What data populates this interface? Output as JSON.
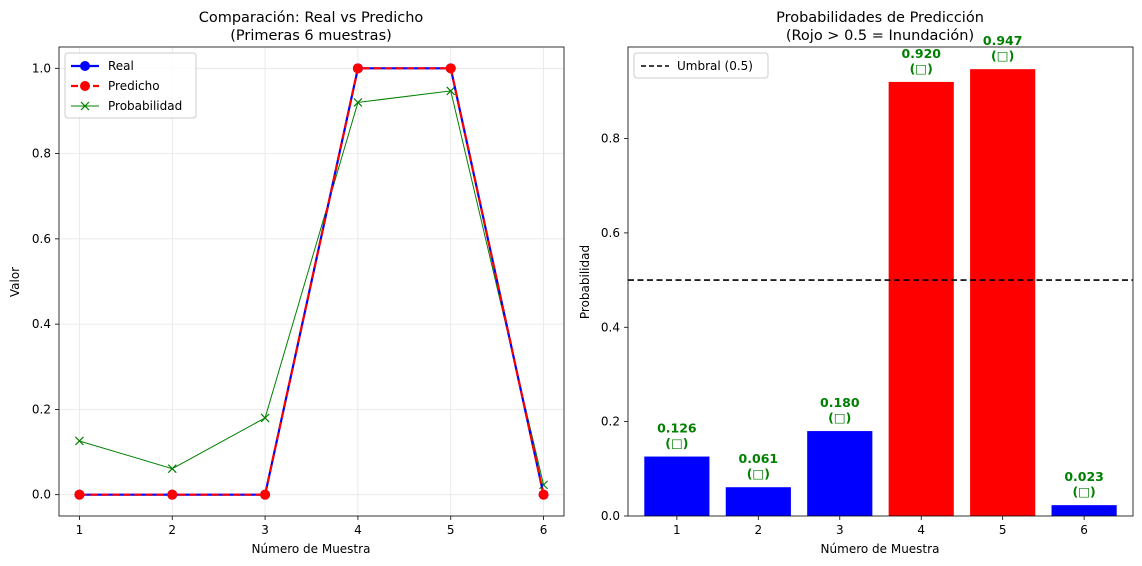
{
  "chart_data": [
    {
      "type": "line",
      "title": "Comparación: Real vs Predicho",
      "subtitle": "(Primeras 6 muestras)",
      "xlabel": "Número de Muestra",
      "ylabel": "Valor",
      "x": [
        1,
        2,
        3,
        4,
        5,
        6
      ],
      "xlim": [
        0.78,
        6.22
      ],
      "ylim": [
        -0.05,
        1.05
      ],
      "yticks": [
        "0.0",
        "0.2",
        "0.4",
        "0.6",
        "0.8",
        "1.0"
      ],
      "grid": true,
      "legend_position": "top-left",
      "series": [
        {
          "name": "Real",
          "values": [
            0,
            0,
            0,
            1,
            1,
            0
          ],
          "color": "#0000ff",
          "marker": "circle",
          "style": "solid"
        },
        {
          "name": "Predicho",
          "values": [
            0,
            0,
            0,
            1,
            1,
            0
          ],
          "color": "#ff0000",
          "marker": "circle",
          "style": "dashed"
        },
        {
          "name": "Probabilidad",
          "values": [
            0.126,
            0.061,
            0.18,
            0.92,
            0.947,
            0.023
          ],
          "color": "#008000",
          "marker": "x",
          "style": "solid"
        }
      ]
    },
    {
      "type": "bar",
      "title": "Probabilidades de Predicción",
      "subtitle": "(Rojo > 0.5 = Inundación)",
      "xlabel": "Número de Muestra",
      "ylabel": "Probabilidad",
      "categories": [
        "1",
        "2",
        "3",
        "4",
        "5",
        "6"
      ],
      "values": [
        0.126,
        0.061,
        0.18,
        0.92,
        0.947,
        0.023
      ],
      "bar_colors": [
        "#0000ff",
        "#0000ff",
        "#0000ff",
        "#ff0000",
        "#ff0000",
        "#0000ff"
      ],
      "data_labels": [
        "0.126",
        "0.061",
        "0.180",
        "0.920",
        "0.947",
        "0.023"
      ],
      "data_label_suffix": "(□)",
      "data_label_color": "#008000",
      "ylim": [
        0,
        0.994
      ],
      "yticks": [
        "0.0",
        "0.2",
        "0.4",
        "0.6",
        "0.8"
      ],
      "threshold": {
        "value": 0.5,
        "label": "Umbral (0.5)",
        "color": "#000000",
        "style": "dashed"
      },
      "legend_position": "top-left",
      "grid": false
    }
  ]
}
